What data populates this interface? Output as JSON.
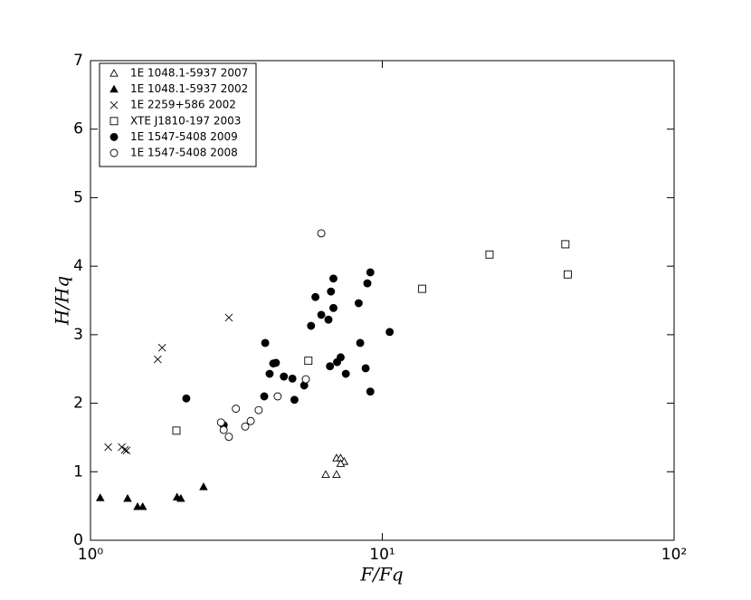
{
  "chart_data": {
    "type": "scatter",
    "x_label": "F/Fq",
    "y_label": "H/Hq",
    "xlim": [
      1,
      100
    ],
    "xscale": "log",
    "xticks": [
      {
        "value": 1,
        "label": "10⁰"
      },
      {
        "value": 10,
        "label": "10¹"
      },
      {
        "value": 100,
        "label": "10²"
      }
    ],
    "ylim": [
      0,
      7
    ],
    "yticks": [
      0,
      1,
      2,
      3,
      4,
      5,
      6,
      7
    ],
    "legend": "upper left",
    "series": [
      {
        "name": "1E 1048.1-5937 2007",
        "marker": "triangle",
        "fill": "none",
        "color": "#000000",
        "x": [
          6.4,
          6.97,
          6.97,
          7.2,
          7.4,
          7.2
        ],
        "values": [
          0.96,
          0.96,
          1.2,
          1.2,
          1.15,
          1.12
        ]
      },
      {
        "name": "1E 1048.1-5937 2002",
        "marker": "triangle",
        "fill": "#000000",
        "color": "#000000",
        "x": [
          1.08,
          1.34,
          1.45,
          1.51,
          1.98,
          2.04,
          2.44
        ],
        "values": [
          0.62,
          0.61,
          0.49,
          0.49,
          0.63,
          0.61,
          0.78
        ]
      },
      {
        "name": "1E 2259+586 2002",
        "marker": "x",
        "fill": "none",
        "color": "#000000",
        "x": [
          1.15,
          1.28,
          1.31,
          1.33,
          1.7,
          1.76,
          2.98
        ],
        "values": [
          1.36,
          1.36,
          1.32,
          1.31,
          2.64,
          2.81,
          3.25
        ]
      },
      {
        "name": "XTE J1810-197 2003",
        "marker": "square",
        "fill": "none",
        "color": "#000000",
        "x": [
          1.97,
          5.58,
          13.7,
          23.3,
          42.4,
          43.2
        ],
        "values": [
          1.6,
          2.62,
          3.67,
          4.17,
          4.32,
          3.88
        ]
      },
      {
        "name": "1E 1547-5408 2009",
        "marker": "circle",
        "fill": "#000000",
        "color": "#000000",
        "x": [
          2.13,
          2.86,
          3.97,
          3.94,
          4.11,
          4.23,
          4.32,
          4.6,
          4.92,
          5.0,
          5.4,
          5.7,
          5.9,
          6.18,
          6.54,
          6.67,
          6.8,
          6.8,
          6.62,
          7.0,
          7.2,
          7.5,
          8.3,
          8.4,
          8.77,
          8.89,
          9.1,
          9.1,
          10.6
        ],
        "values": [
          2.07,
          1.68,
          2.88,
          2.1,
          2.43,
          2.58,
          2.59,
          2.39,
          2.36,
          2.05,
          2.26,
          3.13,
          3.55,
          3.29,
          3.22,
          3.63,
          3.82,
          3.39,
          2.54,
          2.6,
          2.67,
          2.43,
          3.46,
          2.88,
          2.51,
          3.75,
          3.91,
          2.17,
          3.04
        ]
      },
      {
        "name": "1E 1547-5408 2008",
        "marker": "circle",
        "fill": "none",
        "color": "#000000",
        "x": [
          6.18,
          5.47,
          4.38,
          3.77,
          3.54,
          3.39,
          3.15,
          2.8,
          2.86,
          2.98
        ],
        "values": [
          4.48,
          2.35,
          2.1,
          1.9,
          1.74,
          1.66,
          1.92,
          1.72,
          1.61,
          1.51
        ]
      }
    ]
  }
}
